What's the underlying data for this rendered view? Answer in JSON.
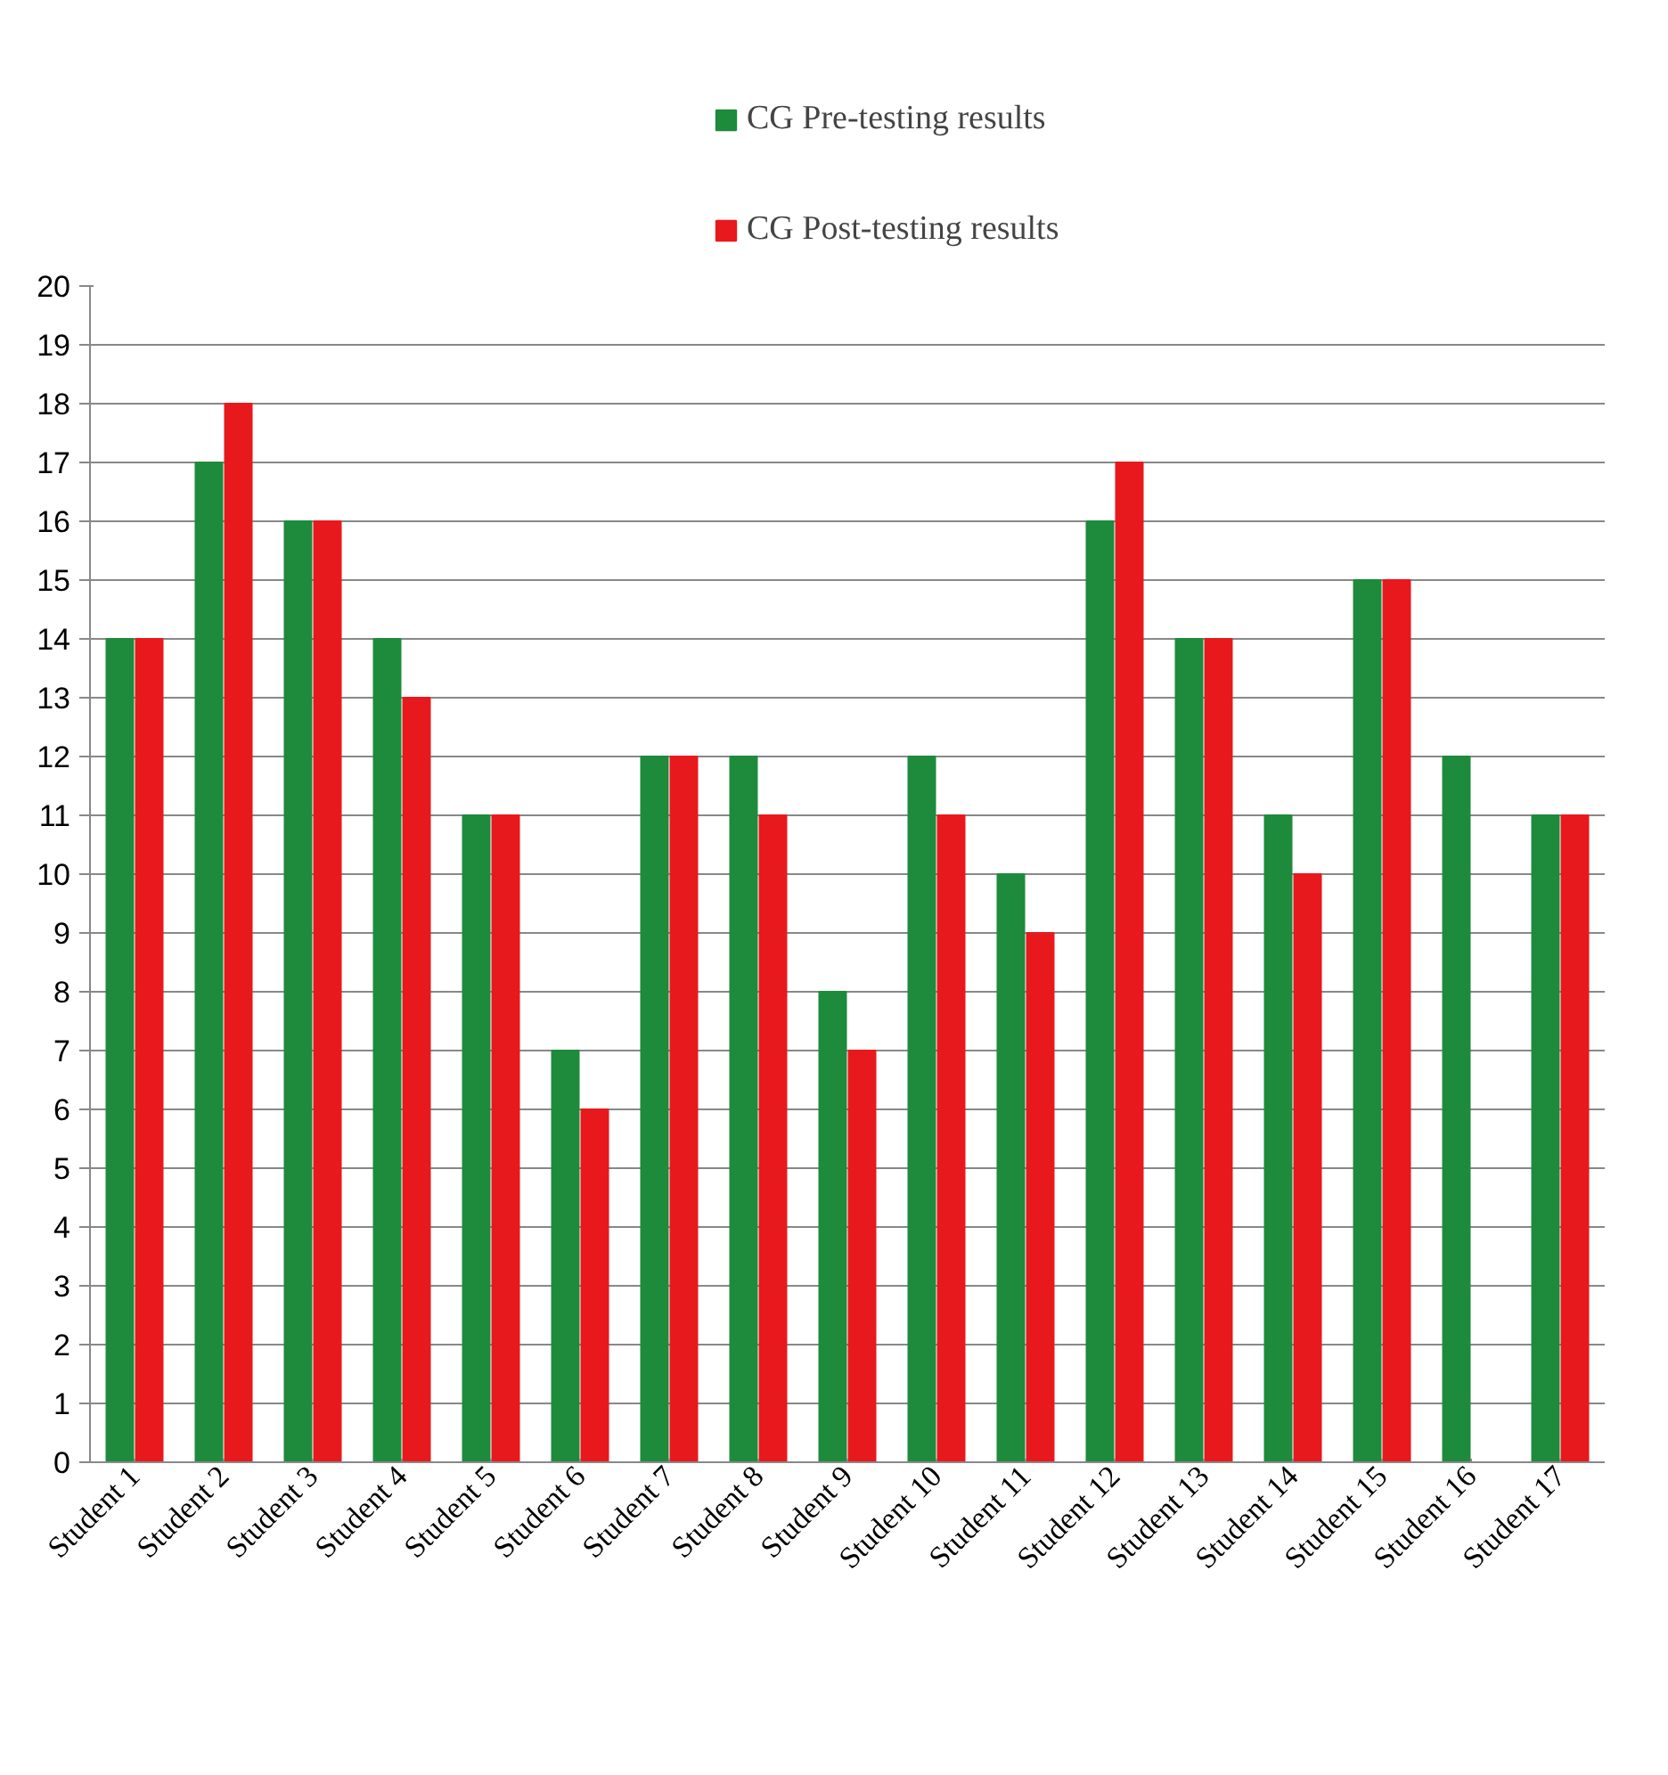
{
  "chart_data": {
    "type": "bar",
    "categories": [
      "Student 1",
      "Student 2",
      "Student 3",
      "Student 4",
      "Student 5",
      "Student 6",
      "Student 7",
      "Student 8",
      "Student 9",
      "Student 10",
      "Student 11",
      "Student 12",
      "Student 13",
      "Student 14",
      "Student 15",
      "Student 16",
      "Student 17"
    ],
    "series": [
      {
        "name": "CG Pre-testing results",
        "color": "#1e8a3c",
        "values": [
          14,
          17,
          16,
          14,
          11,
          7,
          12,
          12,
          8,
          12,
          10,
          16,
          14,
          11,
          15,
          12,
          11
        ]
      },
      {
        "name": "CG Post-testing results",
        "color": "#e8191c",
        "values": [
          14,
          18,
          16,
          13,
          11,
          6,
          12,
          11,
          7,
          11,
          9,
          17,
          14,
          10,
          15,
          null,
          11
        ]
      }
    ],
    "ylim": [
      0,
      20
    ],
    "yticks": [
      0,
      1,
      2,
      3,
      4,
      5,
      6,
      7,
      8,
      9,
      10,
      11,
      12,
      13,
      14,
      15,
      16,
      17,
      18,
      19,
      20
    ],
    "grid": "y",
    "legend": "top"
  }
}
